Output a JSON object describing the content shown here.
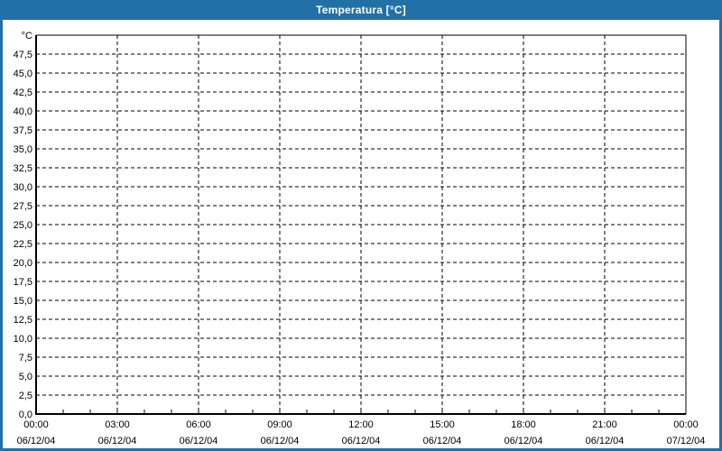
{
  "window": {
    "title": "Temperatura [°C]",
    "titlebar_color": "#2170A6",
    "border_color": "#2170A6"
  },
  "chart_data": {
    "type": "line",
    "title": "Temperatura [°C]",
    "unit_label": "°C",
    "xlabel": "",
    "ylabel": "",
    "ylim": [
      0,
      50
    ],
    "ytick_step": 2.5,
    "ytick_labels": [
      "0,0",
      "2,5",
      "5,0",
      "7,5",
      "10,0",
      "12,5",
      "15,0",
      "17,5",
      "20,0",
      "22,5",
      "25,0",
      "27,5",
      "30,0",
      "32,5",
      "35,0",
      "37,5",
      "40,0",
      "42,5",
      "45,0",
      "47,5"
    ],
    "x_range_hours": [
      0,
      24
    ],
    "x_major_interval_hours": 3,
    "x_minor_interval_hours": 1,
    "x_major_ticks": [
      {
        "time": "00:00",
        "date": "06/12/04"
      },
      {
        "time": "03:00",
        "date": "06/12/04"
      },
      {
        "time": "06:00",
        "date": "06/12/04"
      },
      {
        "time": "09:00",
        "date": "06/12/04"
      },
      {
        "time": "12:00",
        "date": "06/12/04"
      },
      {
        "time": "15:00",
        "date": "06/12/04"
      },
      {
        "time": "18:00",
        "date": "06/12/04"
      },
      {
        "time": "21:00",
        "date": "06/12/04"
      },
      {
        "time": "00:00",
        "date": "07/12/04"
      }
    ],
    "grid": "dashed",
    "grid_color": "#000000",
    "axis_color": "#000000",
    "plot_background": "#ffffff",
    "legend": "none",
    "series": []
  }
}
